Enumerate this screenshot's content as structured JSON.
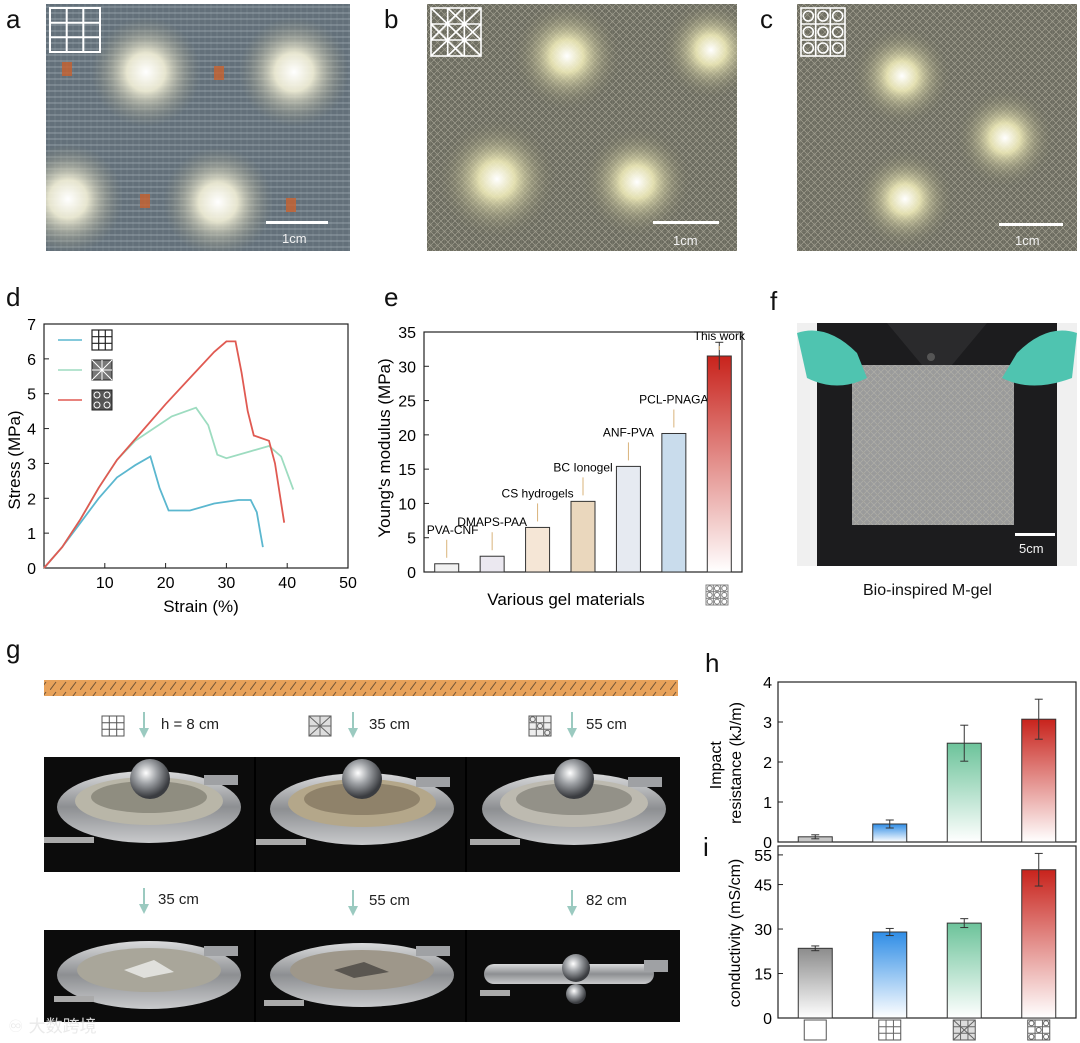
{
  "panels": {
    "a": "a",
    "b": "b",
    "c": "c",
    "d": "d",
    "e": "e",
    "f": "f",
    "g": "g",
    "h": "h",
    "i": "i"
  },
  "scale": {
    "a": "1cm",
    "b": "1cm",
    "c": "1cm",
    "f": "5cm"
  },
  "f_caption": "Bio-inspired M-gel",
  "g": {
    "top": [
      "h = 8 cm",
      "35 cm",
      "55 cm"
    ],
    "bottom": [
      "35 cm",
      "55 cm",
      "82 cm"
    ]
  },
  "watermark": "大数跨境",
  "chart_data": [
    {
      "id": "d",
      "type": "line",
      "xlabel": "Strain (%)",
      "ylabel": "Stress (MPa)",
      "xlim": [
        0,
        50
      ],
      "ylim": [
        0,
        7
      ],
      "xticks": [
        "10",
        "20",
        "30",
        "40",
        "50"
      ],
      "yticks": [
        "0",
        "1",
        "2",
        "3",
        "4",
        "5",
        "6",
        "7"
      ],
      "series": [
        {
          "name": "square grid",
          "color": "#5bb7cf",
          "points": [
            [
              0,
              0
            ],
            [
              3,
              0.6
            ],
            [
              6,
              1.3
            ],
            [
              9,
              2.0
            ],
            [
              12,
              2.6
            ],
            [
              15,
              2.95
            ],
            [
              17.5,
              3.2
            ],
            [
              19,
              2.3
            ],
            [
              20.5,
              1.65
            ],
            [
              24,
              1.65
            ],
            [
              28,
              1.85
            ],
            [
              32,
              1.95
            ],
            [
              34,
              1.95
            ],
            [
              35,
              1.6
            ],
            [
              35.5,
              1.1
            ],
            [
              36,
              0.6
            ]
          ]
        },
        {
          "name": "diagonal grid",
          "color": "#9ddcc0",
          "points": [
            [
              0,
              0
            ],
            [
              3,
              0.6
            ],
            [
              6,
              1.4
            ],
            [
              9,
              2.3
            ],
            [
              12,
              3.1
            ],
            [
              15,
              3.65
            ],
            [
              18,
              4.0
            ],
            [
              21,
              4.35
            ],
            [
              25,
              4.6
            ],
            [
              27,
              4.1
            ],
            [
              28.5,
              3.25
            ],
            [
              30,
              3.15
            ],
            [
              34,
              3.35
            ],
            [
              37,
              3.5
            ],
            [
              39,
              3.2
            ],
            [
              41,
              2.25
            ]
          ]
        },
        {
          "name": "hierarchical grid",
          "color": "#e05a52",
          "points": [
            [
              0,
              0
            ],
            [
              3,
              0.6
            ],
            [
              6,
              1.4
            ],
            [
              9,
              2.3
            ],
            [
              12,
              3.1
            ],
            [
              16,
              3.9
            ],
            [
              20,
              4.7
            ],
            [
              24,
              5.45
            ],
            [
              28,
              6.2
            ],
            [
              30,
              6.5
            ],
            [
              31.5,
              6.5
            ],
            [
              32.5,
              5.6
            ],
            [
              33.5,
              4.5
            ],
            [
              34.5,
              3.8
            ],
            [
              37,
              3.65
            ],
            [
              38,
              3.0
            ],
            [
              39.5,
              1.3
            ]
          ]
        }
      ]
    },
    {
      "id": "e",
      "type": "bar",
      "xlabel": "Various gel materials",
      "ylabel": "Young's modulus (MPa)",
      "ylim": [
        0,
        35
      ],
      "yticks": [
        "0",
        "5",
        "10",
        "15",
        "20",
        "25",
        "30",
        "35"
      ],
      "categories": [
        "PVA-CNF",
        "DMAPS-PAA",
        "CS hydrogels",
        "BC Ionogel",
        "ANF-PVA",
        "PCL-PNAGA",
        "This work"
      ],
      "values": [
        1.2,
        2.3,
        6.5,
        10.3,
        15.4,
        20.2,
        31.5
      ],
      "error": [
        0,
        0,
        0,
        0,
        0,
        0,
        2.0
      ]
    },
    {
      "id": "h",
      "type": "bar",
      "ylabel": "Impact resistance (kJ/m)",
      "ylim": [
        0,
        4
      ],
      "yticks": [
        "0",
        "1",
        "2",
        "3",
        "4"
      ],
      "categories": [
        "blank",
        "square grid",
        "diagonal grid",
        "hierarchical grid"
      ],
      "values": [
        0.13,
        0.45,
        2.47,
        3.07
      ],
      "error": [
        0.05,
        0.1,
        0.45,
        0.5
      ]
    },
    {
      "id": "i",
      "type": "bar",
      "ylabel": "conductivity (mS/cm)",
      "ylim": [
        0,
        58
      ],
      "yticks": [
        "0",
        "15",
        "30",
        "45",
        "55"
      ],
      "categories": [
        "blank",
        "square grid",
        "diagonal grid",
        "hierarchical grid"
      ],
      "values": [
        23.5,
        29.0,
        32.0,
        50.0
      ],
      "error": [
        0.8,
        1.2,
        1.5,
        5.5
      ]
    }
  ],
  "colors": {
    "cyan": "#5bb7cf",
    "mint": "#9ddcc0",
    "red": "#e05a52",
    "ground": "#e8a25a"
  }
}
